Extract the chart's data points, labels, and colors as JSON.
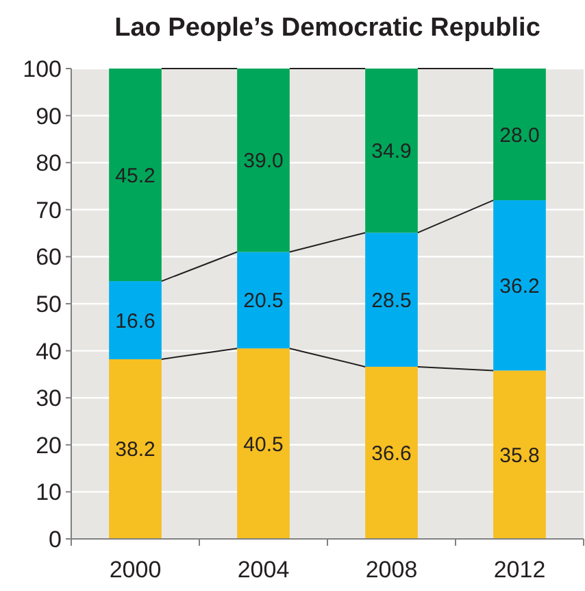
{
  "chart_data": {
    "type": "bar",
    "title": "Lao People’s Democratic Republic",
    "categories": [
      "2000",
      "2004",
      "2008",
      "2012"
    ],
    "stacked": true,
    "series": [
      {
        "color": "#f6bf22",
        "values": [
          38.2,
          40.5,
          36.6,
          35.8
        ],
        "value_labels": [
          "38.2",
          "40.5",
          "36.6",
          "35.8"
        ]
      },
      {
        "color": "#00aeef",
        "values": [
          16.6,
          20.5,
          28.5,
          36.2
        ],
        "value_labels": [
          "16.6",
          "20.5",
          "28.5",
          "36.2"
        ]
      },
      {
        "color": "#00a65a",
        "values": [
          45.2,
          39.0,
          34.9,
          28.0
        ],
        "value_labels": [
          "45.2",
          "39.0",
          "34.9",
          "28.0"
        ]
      }
    ],
    "ylim": [
      0,
      100
    ],
    "yticks": [
      0,
      10,
      20,
      30,
      40,
      50,
      60,
      70,
      80,
      90,
      100
    ],
    "grid": "y"
  }
}
